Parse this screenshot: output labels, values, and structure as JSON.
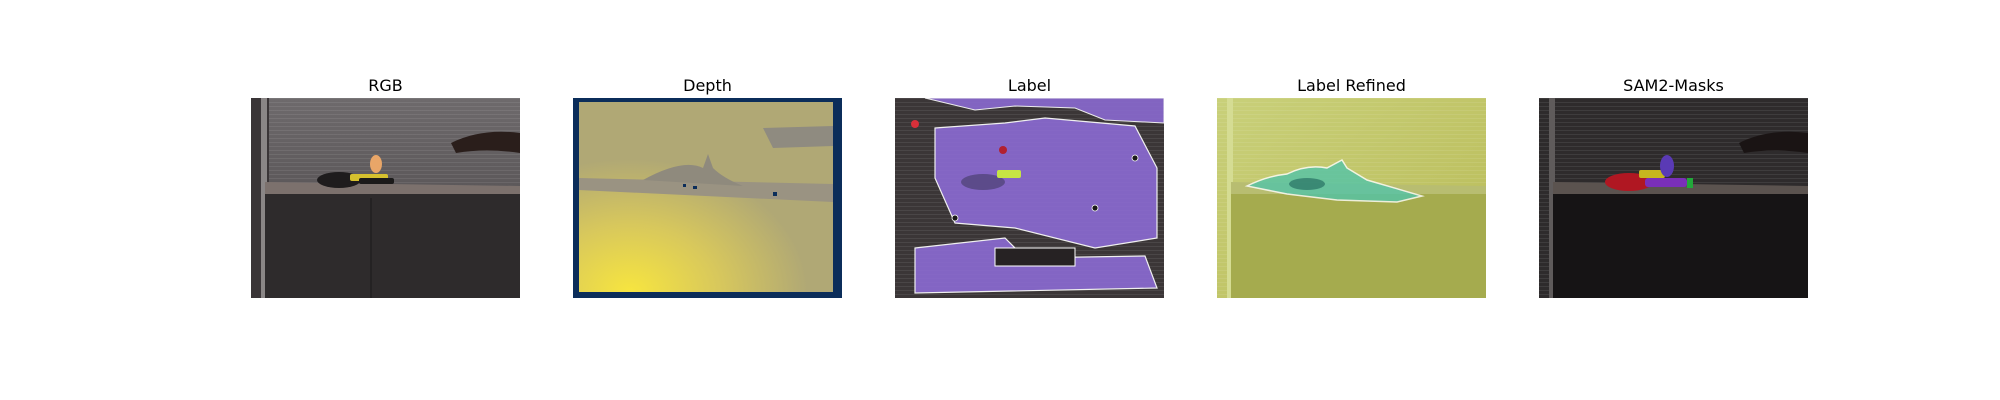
{
  "figure": {
    "panels": [
      {
        "title": "RGB"
      },
      {
        "title": "Depth"
      },
      {
        "title": "Label"
      },
      {
        "title": "Label Refined"
      },
      {
        "title": "SAM2-Masks"
      }
    ]
  },
  "colors": {
    "depth_border": "#0b2d5a",
    "depth_fill": "#b4ab74",
    "depth_bright": "#f5e543",
    "label_purple": "#8a6ad0",
    "refined_yellow": "#c8cf73",
    "refined_teal": "#53c4a8",
    "sam_red": "#b01722",
    "sam_purple": "#7a2fb8",
    "sam_yellow": "#c6b61e",
    "sam_green": "#22a83a"
  }
}
